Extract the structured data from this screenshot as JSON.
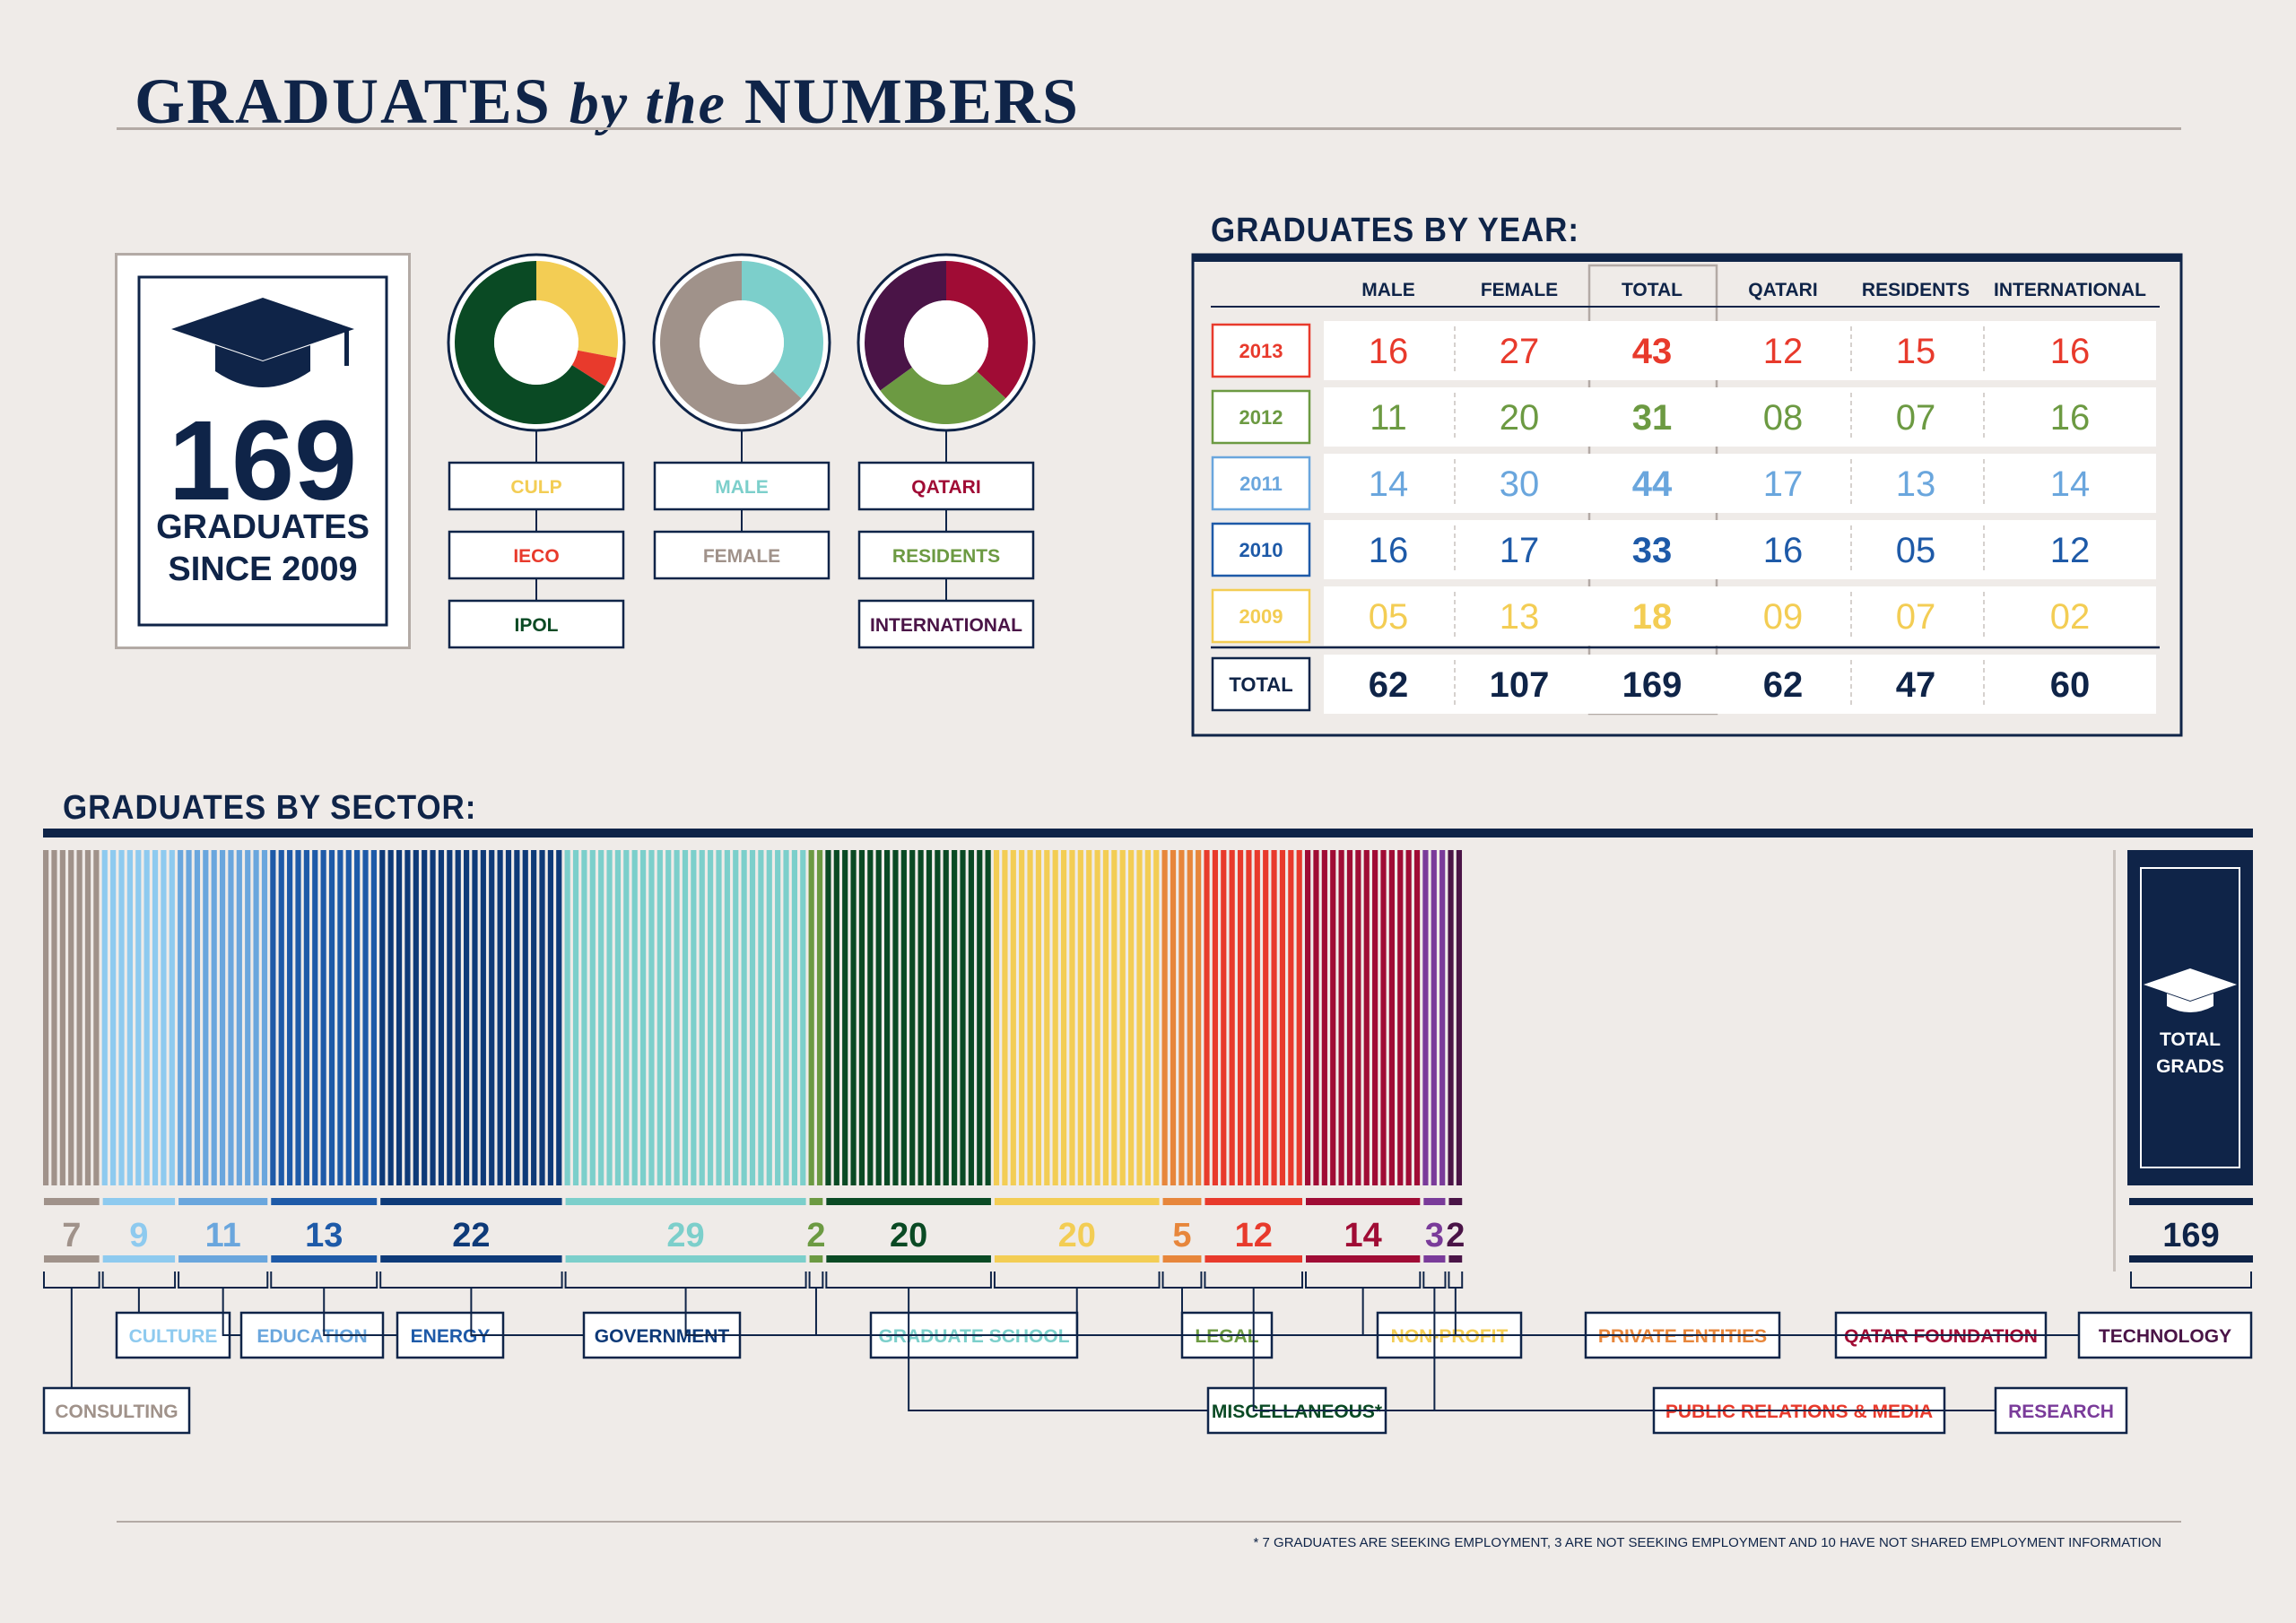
{
  "title": {
    "part1": "GRADUATES",
    "part2": "by the",
    "part3": "NUMBERS"
  },
  "summary": {
    "total": "169",
    "line1": "GRADUATES",
    "line2": "SINCE 2009"
  },
  "colors": {
    "navy": "#0f2448",
    "yellow": "#f3cd54",
    "red": "#e83a2c",
    "darkgreen": "#0a4a24",
    "teal": "#7ccfcb",
    "taupe": "#a0928a",
    "crimson": "#a00c35",
    "olive": "#6c9a42",
    "plum": "#4a1447",
    "lightblue": "#8ecaef",
    "medblue": "#6aa6dd",
    "blue": "#1e5aa8",
    "deepblue": "#0e3a78",
    "orange": "#e7863b",
    "purple": "#7a3b9a"
  },
  "donuts": [
    {
      "name": "program",
      "segments": [
        {
          "label": "CULP",
          "value": 0.28,
          "color": "#f3cd54"
        },
        {
          "label": "IECO",
          "value": 0.06,
          "color": "#e83a2c"
        },
        {
          "label": "IPOL",
          "value": 0.66,
          "color": "#0a4a24"
        }
      ]
    },
    {
      "name": "gender",
      "segments": [
        {
          "label": "MALE",
          "value": 0.37,
          "color": "#7ccfcb"
        },
        {
          "label": "FEMALE",
          "value": 0.63,
          "color": "#a0928a"
        }
      ]
    },
    {
      "name": "nationality",
      "segments": [
        {
          "label": "QATARI",
          "value": 0.37,
          "color": "#a00c35"
        },
        {
          "label": "RESIDENTS",
          "value": 0.28,
          "color": "#6c9a42"
        },
        {
          "label": "INTERNATIONAL",
          "value": 0.35,
          "color": "#4a1447"
        }
      ]
    }
  ],
  "year_table": {
    "heading": "GRADUATES BY YEAR:",
    "columns": [
      "MALE",
      "FEMALE",
      "TOTAL",
      "QATARI",
      "RESIDENTS",
      "INTERNATIONAL"
    ],
    "rows": [
      {
        "year": "2013",
        "color": "#e83a2c",
        "values": [
          "16",
          "27",
          "43",
          "12",
          "15",
          "16"
        ]
      },
      {
        "year": "2012",
        "color": "#6c9a42",
        "values": [
          "11",
          "20",
          "31",
          "08",
          "07",
          "16"
        ]
      },
      {
        "year": "2011",
        "color": "#6aa6dd",
        "values": [
          "14",
          "30",
          "44",
          "17",
          "13",
          "14"
        ]
      },
      {
        "year": "2010",
        "color": "#1e5aa8",
        "values": [
          "16",
          "17",
          "33",
          "16",
          "05",
          "12"
        ]
      },
      {
        "year": "2009",
        "color": "#f3cd54",
        "values": [
          "05",
          "13",
          "18",
          "09",
          "07",
          "02"
        ]
      }
    ],
    "total": {
      "label": "TOTAL",
      "values": [
        "62",
        "107",
        "169",
        "62",
        "47",
        "60"
      ]
    }
  },
  "sector_chart": {
    "heading": "GRADUATES BY SECTOR:",
    "total_label_1": "TOTAL",
    "total_label_2": "GRADS",
    "total_value": "169"
  },
  "chart_data": {
    "type": "bar",
    "title": "GRADUATES BY SECTOR:",
    "categories": [
      "CONSULTING",
      "CULTURE",
      "EDUCATION",
      "ENERGY",
      "GOVERNMENT",
      "GRADUATE SCHOOL",
      "LEGAL",
      "MISCELLANEOUS*",
      "NON-PROFIT",
      "PRIVATE ENTITIES",
      "PUBLIC RELATIONS & MEDIA",
      "QATAR FOUNDATION",
      "RESEARCH",
      "TECHNOLOGY"
    ],
    "values": [
      7,
      9,
      11,
      13,
      22,
      29,
      2,
      20,
      20,
      5,
      12,
      14,
      3,
      2
    ],
    "colors": [
      "#a0928a",
      "#8ecaef",
      "#6aa6dd",
      "#1e5aa8",
      "#0e3a78",
      "#7ccfcb",
      "#6c9a42",
      "#0a4a24",
      "#f3cd54",
      "#e7863b",
      "#e83a2c",
      "#a00c35",
      "#7a3b9a",
      "#4a1447"
    ],
    "total": 169
  },
  "footnote": "* 7 GRADUATES ARE SEEKING EMPLOYMENT, 3 ARE NOT SEEKING EMPLOYMENT AND 10 HAVE NOT SHARED EMPLOYMENT INFORMATION"
}
